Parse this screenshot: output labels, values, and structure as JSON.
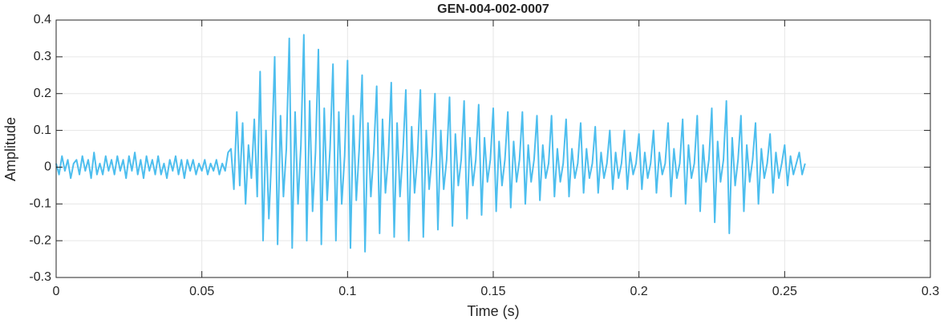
{
  "chart_data": {
    "type": "line",
    "title": "GEN-004-002-0007",
    "x_label": "Time (s)",
    "y_label": "Amplitude",
    "color": "#4dbeee",
    "grid": true,
    "xlim": [
      0,
      0.3
    ],
    "xticks": [
      0,
      0.05,
      0.1,
      0.15,
      0.2,
      0.25,
      0.3
    ],
    "ylim": [
      -0.3,
      0.4
    ],
    "yticks": [
      -0.3,
      -0.2,
      -0.1,
      0,
      0.1,
      0.2,
      0.3,
      0.4
    ],
    "x": [
      0,
      0.001,
      0.002,
      0.003,
      0.004,
      0.005,
      0.006,
      0.007,
      0.008,
      0.009,
      0.01,
      0.011,
      0.012,
      0.013,
      0.014,
      0.015,
      0.016,
      0.017,
      0.018,
      0.019,
      0.02,
      0.021,
      0.022,
      0.023,
      0.024,
      0.025,
      0.026,
      0.027,
      0.028,
      0.029,
      0.03,
      0.031,
      0.032,
      0.033,
      0.034,
      0.035,
      0.036,
      0.037,
      0.038,
      0.039,
      0.04,
      0.041,
      0.042,
      0.043,
      0.044,
      0.045,
      0.046,
      0.047,
      0.048,
      0.049,
      0.05,
      0.051,
      0.052,
      0.053,
      0.054,
      0.055,
      0.056,
      0.057,
      0.058,
      0.059,
      0.06,
      0.061,
      0.062,
      0.063,
      0.064,
      0.065,
      0.066,
      0.067,
      0.068,
      0.069,
      0.07,
      0.071,
      0.072,
      0.073,
      0.074,
      0.075,
      0.076,
      0.077,
      0.078,
      0.079,
      0.08,
      0.081,
      0.082,
      0.083,
      0.084,
      0.085,
      0.086,
      0.087,
      0.088,
      0.089,
      0.09,
      0.091,
      0.092,
      0.093,
      0.094,
      0.095,
      0.096,
      0.097,
      0.098,
      0.099,
      0.1,
      0.101,
      0.102,
      0.103,
      0.104,
      0.105,
      0.106,
      0.107,
      0.108,
      0.109,
      0.11,
      0.111,
      0.112,
      0.113,
      0.114,
      0.115,
      0.116,
      0.117,
      0.118,
      0.119,
      0.12,
      0.121,
      0.122,
      0.123,
      0.124,
      0.125,
      0.126,
      0.127,
      0.128,
      0.129,
      0.13,
      0.131,
      0.132,
      0.133,
      0.134,
      0.135,
      0.136,
      0.137,
      0.138,
      0.139,
      0.14,
      0.141,
      0.142,
      0.143,
      0.144,
      0.145,
      0.146,
      0.147,
      0.148,
      0.149,
      0.15,
      0.151,
      0.152,
      0.153,
      0.154,
      0.155,
      0.156,
      0.157,
      0.158,
      0.159,
      0.16,
      0.161,
      0.162,
      0.163,
      0.164,
      0.165,
      0.166,
      0.167,
      0.168,
      0.169,
      0.17,
      0.171,
      0.172,
      0.173,
      0.174,
      0.175,
      0.176,
      0.177,
      0.178,
      0.179,
      0.18,
      0.181,
      0.182,
      0.183,
      0.184,
      0.185,
      0.186,
      0.187,
      0.188,
      0.189,
      0.19,
      0.191,
      0.192,
      0.193,
      0.194,
      0.195,
      0.196,
      0.197,
      0.198,
      0.199,
      0.2,
      0.201,
      0.202,
      0.203,
      0.204,
      0.205,
      0.206,
      0.207,
      0.208,
      0.209,
      0.21,
      0.211,
      0.212,
      0.213,
      0.214,
      0.215,
      0.216,
      0.217,
      0.218,
      0.219,
      0.22,
      0.221,
      0.222,
      0.223,
      0.224,
      0.225,
      0.226,
      0.227,
      0.228,
      0.229,
      0.23,
      0.231,
      0.232,
      0.233,
      0.234,
      0.235,
      0.236,
      0.237,
      0.238,
      0.239,
      0.24,
      0.241,
      0.242,
      0.243,
      0.244,
      0.245,
      0.246,
      0.247,
      0.248,
      0.249,
      0.25,
      0.251,
      0.252,
      0.253,
      0.254,
      0.255,
      0.256,
      0.257
    ],
    "values": [
      0.01,
      -0.02,
      0.03,
      -0.01,
      0.02,
      -0.03,
      0.01,
      0.02,
      -0.02,
      0.03,
      -0.01,
      0.02,
      -0.03,
      0.04,
      -0.02,
      0.01,
      -0.02,
      0.03,
      -0.01,
      0.02,
      -0.02,
      0.03,
      -0.01,
      0.02,
      -0.03,
      0.03,
      -0.01,
      0.04,
      -0.02,
      0.02,
      -0.03,
      0.03,
      -0.01,
      0.02,
      -0.02,
      0.03,
      -0.02,
      0.01,
      -0.03,
      0.02,
      -0.01,
      0.03,
      -0.02,
      0.02,
      -0.03,
      0.02,
      -0.01,
      0.02,
      -0.02,
      0.01,
      -0.01,
      0.02,
      -0.02,
      0.01,
      -0.01,
      0.02,
      -0.02,
      0.01,
      -0.01,
      0.04,
      0.05,
      -0.06,
      0.15,
      -0.05,
      0.12,
      -0.1,
      0.06,
      -0.03,
      0.13,
      -0.08,
      0.26,
      -0.2,
      0.1,
      -0.14,
      0.04,
      0.3,
      -0.21,
      0.14,
      -0.08,
      0.05,
      0.35,
      -0.22,
      0.15,
      -0.1,
      0.06,
      0.36,
      -0.2,
      0.18,
      -0.12,
      0.04,
      0.32,
      -0.21,
      0.16,
      -0.09,
      0.05,
      0.28,
      -0.2,
      0.15,
      -0.1,
      0.03,
      0.29,
      -0.22,
      0.14,
      -0.09,
      0.05,
      0.25,
      -0.23,
      0.12,
      -0.08,
      0.04,
      0.22,
      -0.18,
      0.13,
      -0.07,
      0.03,
      0.23,
      -0.19,
      0.12,
      -0.08,
      0.04,
      0.21,
      -0.2,
      0.11,
      -0.07,
      0.03,
      0.21,
      -0.19,
      0.1,
      -0.06,
      0.03,
      0.2,
      -0.17,
      0.1,
      -0.06,
      0.02,
      0.19,
      -0.16,
      0.09,
      -0.05,
      0.02,
      0.18,
      -0.14,
      0.08,
      -0.05,
      0.02,
      0.17,
      -0.13,
      0.08,
      -0.04,
      0.02,
      0.16,
      -0.12,
      0.07,
      -0.05,
      0.02,
      0.15,
      -0.11,
      0.07,
      -0.04,
      0.02,
      0.15,
      -0.1,
      0.06,
      -0.04,
      0.02,
      0.14,
      -0.09,
      0.06,
      -0.03,
      0.01,
      0.14,
      -0.08,
      0.05,
      -0.04,
      0.01,
      0.13,
      -0.08,
      0.05,
      -0.03,
      0.01,
      0.12,
      -0.07,
      0.05,
      -0.03,
      0.01,
      0.11,
      -0.07,
      0.04,
      -0.03,
      0.01,
      0.1,
      -0.06,
      0.04,
      -0.03,
      0.01,
      0.1,
      -0.06,
      0.04,
      -0.02,
      0.01,
      0.09,
      -0.06,
      0.04,
      -0.03,
      0.01,
      0.1,
      -0.07,
      0.04,
      -0.02,
      0.01,
      0.12,
      -0.08,
      0.05,
      -0.03,
      0.01,
      0.13,
      -0.1,
      0.06,
      -0.03,
      0.01,
      0.14,
      -0.12,
      0.06,
      -0.04,
      0.02,
      0.16,
      -0.15,
      0.07,
      -0.04,
      0.02,
      0.18,
      -0.18,
      0.08,
      -0.05,
      0.02,
      0.14,
      -0.12,
      0.06,
      -0.04,
      0.02,
      0.12,
      -0.1,
      0.05,
      -0.03,
      0.01,
      0.09,
      -0.07,
      0.04,
      -0.03,
      0.01,
      0.06,
      -0.05,
      0.03,
      -0.02,
      0.01,
      0.04,
      -0.02,
      0.01
    ]
  }
}
